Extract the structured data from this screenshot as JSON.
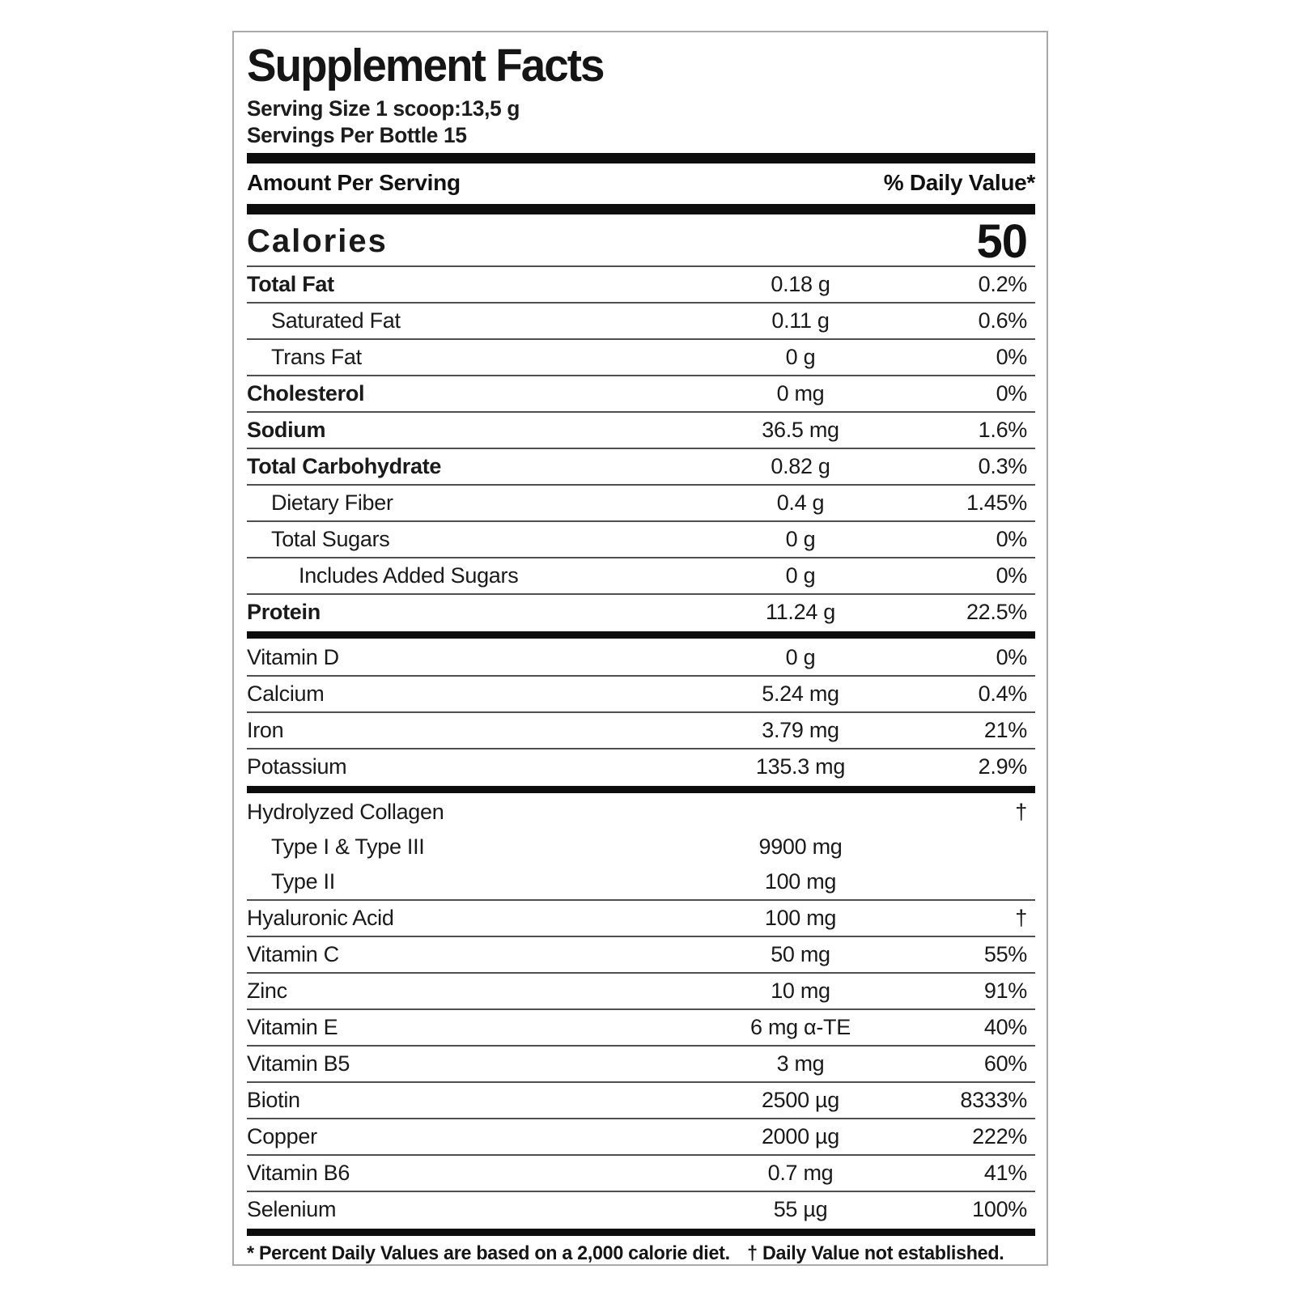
{
  "label": {
    "title": "Supplement Facts",
    "serving_size": "Serving Size 1 scoop:13,5 g",
    "servings_per_bottle": "Servings Per Bottle 15",
    "header": {
      "amount_col": "Amount Per Serving",
      "dv_col": "% Daily Value*"
    },
    "calories": {
      "label": "Calories",
      "value": "50"
    },
    "rows": [
      {
        "label": "Total Fat",
        "amount": "0.18 g",
        "dv": "0.2%",
        "bold": true,
        "indent": 0,
        "sep": true,
        "thick_after": false
      },
      {
        "label": "Saturated Fat",
        "amount": "0.11 g",
        "dv": "0.6%",
        "bold": false,
        "indent": 1,
        "sep": true,
        "thick_after": false
      },
      {
        "label": "Trans Fat",
        "amount": "0 g",
        "dv": "0%",
        "bold": false,
        "indent": 1,
        "sep": true,
        "thick_after": false
      },
      {
        "label": "Cholesterol",
        "amount": "0 mg",
        "dv": "0%",
        "bold": true,
        "indent": 0,
        "sep": true,
        "thick_after": false
      },
      {
        "label": "Sodium",
        "amount": "36.5 mg",
        "dv": "1.6%",
        "bold": true,
        "indent": 0,
        "sep": true,
        "thick_after": false
      },
      {
        "label": "Total Carbohydrate",
        "amount": "0.82 g",
        "dv": "0.3%",
        "bold": true,
        "indent": 0,
        "sep": true,
        "thick_after": false
      },
      {
        "label": "Dietary Fiber",
        "amount": "0.4 g",
        "dv": "1.45%",
        "bold": false,
        "indent": 1,
        "sep": true,
        "thick_after": false
      },
      {
        "label": "Total Sugars",
        "amount": "0 g",
        "dv": "0%",
        "bold": false,
        "indent": 1,
        "sep": true,
        "thick_after": false
      },
      {
        "label": "Includes Added Sugars",
        "amount": "0 g",
        "dv": "0%",
        "bold": false,
        "indent": 2,
        "sep": true,
        "thick_after": false
      },
      {
        "label": "Protein",
        "amount": "11.24 g",
        "dv": "22.5%",
        "bold": true,
        "indent": 0,
        "sep": true,
        "thick_after": true
      },
      {
        "label": "Vitamin D",
        "amount": "0 g",
        "dv": "0%",
        "bold": false,
        "indent": 0,
        "sep": false,
        "thick_after": false
      },
      {
        "label": "Calcium",
        "amount": "5.24 mg",
        "dv": "0.4%",
        "bold": false,
        "indent": 0,
        "sep": true,
        "thick_after": false
      },
      {
        "label": "Iron",
        "amount": "3.79 mg",
        "dv": "21%",
        "bold": false,
        "indent": 0,
        "sep": true,
        "thick_after": false
      },
      {
        "label": "Potassium",
        "amount": "135.3 mg",
        "dv": "2.9%",
        "bold": false,
        "indent": 0,
        "sep": true,
        "thick_after": true
      },
      {
        "label": "Hydrolyzed Collagen",
        "amount": "",
        "dv": "†",
        "bold": false,
        "indent": 0,
        "sep": false,
        "thick_after": false
      },
      {
        "label": "Type I & Type III",
        "amount": "9900 mg",
        "dv": "",
        "bold": false,
        "indent": 1,
        "sep": false,
        "thick_after": false
      },
      {
        "label": "Type II",
        "amount": "100 mg",
        "dv": "",
        "bold": false,
        "indent": 1,
        "sep": false,
        "thick_after": false
      },
      {
        "label": "Hyaluronic Acid",
        "amount": "100 mg",
        "dv": "†",
        "bold": false,
        "indent": 0,
        "sep": true,
        "thick_after": false
      },
      {
        "label": "Vitamin C",
        "amount": "50 mg",
        "dv": "55%",
        "bold": false,
        "indent": 0,
        "sep": true,
        "thick_after": false
      },
      {
        "label": "Zinc",
        "amount": "10 mg",
        "dv": "91%",
        "bold": false,
        "indent": 0,
        "sep": true,
        "thick_after": false
      },
      {
        "label": "Vitamin E",
        "amount": "6 mg α-TE",
        "dv": "40%",
        "bold": false,
        "indent": 0,
        "sep": true,
        "thick_after": false
      },
      {
        "label": "Vitamin B5",
        "amount": "3 mg",
        "dv": "60%",
        "bold": false,
        "indent": 0,
        "sep": true,
        "thick_after": false
      },
      {
        "label": "Biotin",
        "amount": "2500 µg",
        "dv": "8333%",
        "bold": false,
        "indent": 0,
        "sep": true,
        "thick_after": false
      },
      {
        "label": "Copper",
        "amount": "2000 µg",
        "dv": "222%",
        "bold": false,
        "indent": 0,
        "sep": true,
        "thick_after": false
      },
      {
        "label": "Vitamin B6",
        "amount": "0.7 mg",
        "dv": "41%",
        "bold": false,
        "indent": 0,
        "sep": true,
        "thick_after": false
      },
      {
        "label": "Selenium",
        "amount": "55 µg",
        "dv": "100%",
        "bold": false,
        "indent": 0,
        "sep": true,
        "thick_after": true
      }
    ],
    "footnote": {
      "percent": "* Percent Daily Values are based on a 2,000 calorie diet.",
      "dagger": "† Daily Value not established."
    },
    "colors": {
      "background": "#ffffff",
      "text": "#111111",
      "thick_bar": "#0d0d0d",
      "separator": "#4f4f4f",
      "panel_border": "#a9a9a9"
    }
  }
}
